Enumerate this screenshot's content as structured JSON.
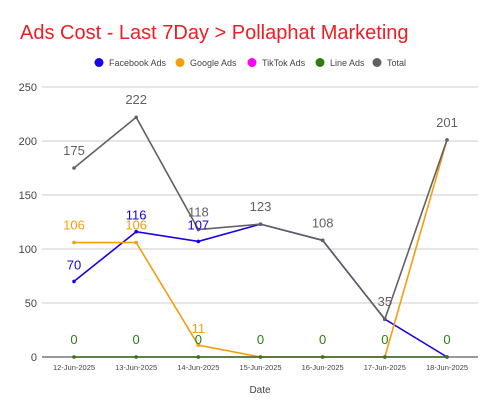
{
  "colors": {
    "title": "#ee1c25",
    "facebook": "#1a00e6",
    "google": "#f59e0b",
    "tiktok": "#ff00ff",
    "line": "#2e7d12",
    "total": "#616161",
    "grid": "#cccccc",
    "axis": "#555555",
    "text": "#444444"
  },
  "chart_data": {
    "type": "line",
    "title": "Ads Cost - Last 7Day > Pollaphat Marketing",
    "xlabel": "Date",
    "ylabel": "",
    "ylim": [
      0,
      250
    ],
    "yticks": [
      0,
      50,
      100,
      150,
      200,
      250
    ],
    "grid": true,
    "legend_position": "top",
    "categories": [
      "12-Jun-2025",
      "13-Jun-2025",
      "14-Jun-2025",
      "15-Jun-2025",
      "16-Jun-2025",
      "17-Jun-2025",
      "18-Jun-2025"
    ],
    "series": [
      {
        "name": "Facebook Ads",
        "color_key": "facebook",
        "values": [
          70,
          116,
          107,
          123,
          108,
          35,
          0
        ],
        "labels": [
          "70",
          "116",
          "107",
          "",
          "",
          "",
          ""
        ]
      },
      {
        "name": "Google Ads",
        "color_key": "google",
        "values": [
          106,
          106,
          11,
          0,
          0,
          0,
          201
        ],
        "labels": [
          "106",
          "106",
          "11",
          "",
          "",
          "",
          ""
        ]
      },
      {
        "name": "TikTok Ads",
        "color_key": "tiktok",
        "values": [
          0,
          0,
          0,
          0,
          0,
          0,
          0
        ],
        "labels": [
          "",
          "",
          "",
          "",
          "",
          "",
          ""
        ]
      },
      {
        "name": "Line Ads",
        "color_key": "line",
        "values": [
          0,
          0,
          0,
          0,
          0,
          0,
          0
        ],
        "labels": [
          "0",
          "0",
          "0",
          "0",
          "0",
          "0",
          "0"
        ]
      },
      {
        "name": "Total",
        "color_key": "total",
        "values": [
          175,
          222,
          118,
          123,
          108,
          35,
          201
        ],
        "labels": [
          "175",
          "222",
          "118",
          "123",
          "108",
          "35",
          "201"
        ]
      }
    ]
  }
}
